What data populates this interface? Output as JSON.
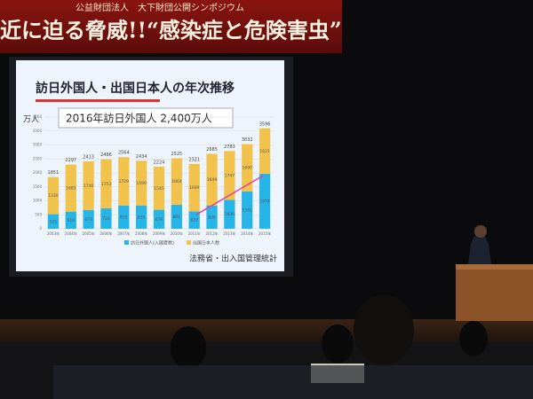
{
  "banner": {
    "organizer": "公益財団法人　大下財団公開シンポジウム",
    "title": "近に迫る脅威!!“感染症と危険害虫”"
  },
  "slide": {
    "source": "法務省・出入国管理統計"
  },
  "chart_data": {
    "type": "bar",
    "stacked": true,
    "title": "訪日外国人・出国日本人の年次推移",
    "y_label": "万人",
    "annotation": "2016年訪日外国人 2,400万人",
    "categories": [
      "2003年",
      "2004年",
      "2005年",
      "2006年",
      "2007年",
      "2008年",
      "2009年",
      "2010年",
      "2011年",
      "2012年",
      "2013年",
      "2014年",
      "2015年"
    ],
    "series": [
      {
        "name": "訪日外国人(入国者数)",
        "color": "#27b4e6",
        "values": [
          521,
          614,
          673,
          733,
          835,
          835,
          679,
          861,
          622,
          836,
          1036,
          1341,
          1974
        ]
      },
      {
        "name": "出国日本人数",
        "color": "#f2c34c",
        "values": [
          1330,
          1683,
          1740,
          1753,
          1729,
          1599,
          1545,
          1664,
          1699,
          1849,
          1747,
          1690,
          1621
        ]
      }
    ],
    "totals": [
      1851,
      2297,
      2413,
      2486,
      2564,
      2434,
      2224,
      2525,
      2321,
      2685,
      2783,
      3032,
      3596
    ],
    "ylim": [
      0,
      4000
    ],
    "yticks": [
      0,
      500,
      1000,
      1500,
      2000,
      2500,
      3000,
      3500,
      4000
    ],
    "grid": true
  }
}
